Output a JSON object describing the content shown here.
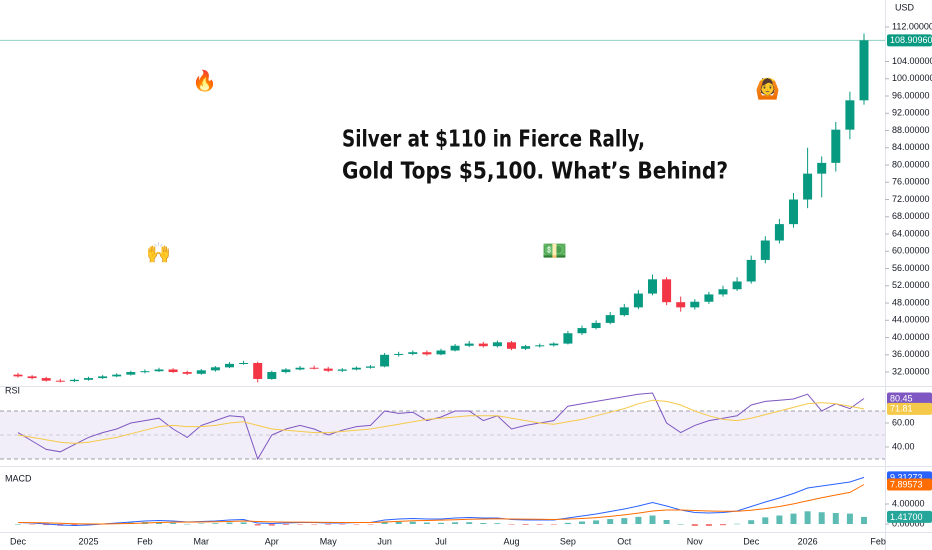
{
  "headline": [
    "Silver at $110 in Fierce Rally,",
    "Gold Tops $5,100. What’s Behind?"
  ],
  "stickers": [
    "🔥",
    "🙆",
    "🙌",
    "💵"
  ],
  "currency": "USD",
  "chart_data": [
    {
      "type": "candlestick",
      "name": "price",
      "categories": [
        "Dec",
        null,
        null,
        null,
        null,
        "2025",
        null,
        null,
        null,
        "Feb",
        null,
        null,
        null,
        "Mar",
        null,
        null,
        null,
        null,
        "Apr",
        null,
        null,
        null,
        "May",
        null,
        null,
        null,
        "Jun",
        null,
        null,
        null,
        "Jul",
        null,
        null,
        null,
        null,
        "Aug",
        null,
        null,
        null,
        "Sep",
        null,
        null,
        null,
        "Oct",
        null,
        null,
        null,
        null,
        "Nov",
        null,
        null,
        null,
        "Dec",
        null,
        null,
        null,
        "2026",
        null,
        null,
        null,
        null,
        "Feb"
      ],
      "open": [
        31.4,
        31.0,
        30.6,
        30.0,
        29.9,
        30.2,
        30.6,
        31.0,
        31.4,
        32.0,
        32.2,
        32.6,
        32.0,
        31.6,
        32.4,
        33.1,
        33.9,
        34.1,
        30.4,
        32.0,
        32.6,
        33.0,
        32.8,
        32.3,
        32.6,
        33.0,
        33.3,
        36.0,
        36.2,
        36.6,
        36.1,
        37.0,
        38.1,
        38.6,
        38.0,
        38.9,
        37.4,
        38.0,
        38.2,
        38.6,
        41.0,
        42.2,
        43.4,
        45.2,
        47.0,
        50.2,
        53.5,
        48.2,
        47.0,
        48.3,
        50.0,
        51.2,
        53.0,
        58.0,
        62.5,
        66.3,
        72.0,
        78.0,
        80.5,
        88.2,
        95.0,
        null
      ],
      "high": [
        31.8,
        31.3,
        30.9,
        30.4,
        30.5,
        30.9,
        31.3,
        31.7,
        32.3,
        32.6,
        33.0,
        32.9,
        32.3,
        32.7,
        33.4,
        34.3,
        34.6,
        34.4,
        32.3,
        32.9,
        33.4,
        33.5,
        33.2,
        32.9,
        33.3,
        33.6,
        36.4,
        36.7,
        37.0,
        37.0,
        37.4,
        38.5,
        39.2,
        39.0,
        39.3,
        39.2,
        38.3,
        38.6,
        38.9,
        41.5,
        42.8,
        44.0,
        45.9,
        47.8,
        51.0,
        54.6,
        54.0,
        49.5,
        48.9,
        50.6,
        52.0,
        54.0,
        59.0,
        63.5,
        67.5,
        73.5,
        84.0,
        82.0,
        90.0,
        97.0,
        110.5,
        null
      ],
      "low": [
        30.7,
        30.3,
        29.8,
        29.6,
        29.7,
        30.0,
        30.4,
        30.8,
        31.2,
        31.7,
        32.0,
        31.8,
        31.3,
        31.4,
        32.1,
        32.9,
        33.7,
        29.6,
        30.2,
        31.7,
        32.4,
        32.6,
        32.0,
        32.0,
        32.4,
        32.8,
        33.1,
        35.6,
        35.9,
        35.8,
        35.9,
        36.8,
        37.8,
        37.7,
        37.7,
        37.1,
        37.1,
        37.7,
        37.9,
        38.4,
        40.6,
        41.9,
        43.1,
        44.9,
        46.6,
        49.8,
        47.5,
        46.0,
        46.5,
        47.8,
        49.5,
        50.8,
        52.5,
        57.2,
        61.8,
        65.5,
        70.0,
        72.5,
        78.5,
        86.0,
        94.0,
        null
      ],
      "close": [
        31.0,
        30.6,
        30.0,
        29.9,
        30.2,
        30.6,
        31.0,
        31.4,
        32.0,
        32.2,
        32.6,
        32.0,
        31.6,
        32.4,
        33.1,
        33.9,
        34.1,
        30.4,
        32.0,
        32.6,
        33.0,
        32.8,
        32.3,
        32.6,
        33.0,
        33.3,
        36.0,
        36.2,
        36.6,
        36.1,
        37.0,
        38.1,
        38.6,
        38.0,
        38.9,
        37.4,
        38.0,
        38.2,
        38.6,
        41.0,
        42.2,
        43.4,
        45.2,
        47.0,
        50.2,
        53.5,
        48.2,
        47.0,
        48.3,
        50.0,
        51.2,
        53.0,
        58.0,
        62.5,
        66.3,
        72.0,
        78.0,
        80.5,
        88.2,
        95.0,
        108.9096,
        null
      ],
      "last_label": "108.90960",
      "up_color": "#089981",
      "down_color": "#f23645",
      "ylim": [
        29,
        118.26
      ],
      "yticks": [
        {
          "value": 32,
          "label": "32.00000"
        },
        {
          "value": 36,
          "label": "36.00000"
        },
        {
          "value": 40,
          "label": "40.00000"
        },
        {
          "value": 44,
          "label": "44.00000"
        },
        {
          "value": 48,
          "label": "48.00000"
        },
        {
          "value": 52,
          "label": "52.00000"
        },
        {
          "value": 56,
          "label": "56.00000"
        },
        {
          "value": 60,
          "label": "60.00000"
        },
        {
          "value": 64,
          "label": "64.00000"
        },
        {
          "value": 68,
          "label": "68.00000"
        },
        {
          "value": 72,
          "label": "72.00000"
        },
        {
          "value": 76,
          "label": "76.00000"
        },
        {
          "value": 80,
          "label": "80.00000"
        },
        {
          "value": 84,
          "label": "84.00000"
        },
        {
          "value": 88,
          "label": "88.00000"
        },
        {
          "value": 92,
          "label": "92.00000"
        },
        {
          "value": 96,
          "label": "96.00000"
        },
        {
          "value": 100,
          "label": "100.00000"
        },
        {
          "value": 104,
          "label": "104.00000"
        },
        {
          "value": 112,
          "label": "112.00000"
        }
      ],
      "grid": false
    },
    {
      "type": "line",
      "name": "RSI",
      "series": [
        {
          "name": "RSI",
          "color": "#7e57c2",
          "last_label": "80.45",
          "values": [
            52,
            45,
            38,
            36,
            42,
            48,
            52,
            55,
            60,
            62,
            64,
            55,
            48,
            58,
            62,
            66,
            65,
            30,
            50,
            55,
            58,
            55,
            50,
            54,
            57,
            58,
            70,
            68,
            69,
            62,
            65,
            70,
            70,
            62,
            66,
            55,
            58,
            60,
            62,
            74,
            76,
            78,
            80,
            82,
            84,
            85,
            60,
            52,
            58,
            62,
            64,
            66,
            75,
            78,
            79,
            80,
            84,
            70,
            76,
            72,
            80.45,
            null
          ]
        },
        {
          "name": "RSI-based MA",
          "color": "#f5c94a",
          "last_label": "71.81",
          "values": [
            50,
            48,
            46,
            44,
            43,
            44,
            46,
            48,
            51,
            54,
            57,
            58,
            57,
            57,
            58,
            60,
            61,
            58,
            55,
            54,
            53,
            52,
            52,
            53,
            54,
            55,
            57,
            59,
            61,
            63,
            64,
            65,
            66,
            66,
            66,
            64,
            62,
            60,
            59,
            61,
            63,
            66,
            69,
            72,
            76,
            79,
            78,
            75,
            70,
            66,
            63,
            62,
            64,
            67,
            70,
            73,
            76,
            77,
            76,
            74,
            71.81,
            null
          ]
        }
      ],
      "bands": {
        "upper": 70,
        "middle": 50,
        "lower": 30
      },
      "ylim": [
        25,
        89.2
      ],
      "yticks": [
        {
          "value": 40,
          "label": "40.00"
        },
        {
          "value": 60,
          "label": "60.00"
        }
      ]
    },
    {
      "type": "macd",
      "name": "MACD",
      "series": [
        {
          "name": "Histogram",
          "kind": "bar",
          "color": "#26a69a",
          "negative_color": "#ef5350",
          "last_label": "1.41700",
          "values": [
            0,
            -0.08,
            -0.22,
            -0.34,
            -0.35,
            -0.2,
            0,
            0.16,
            0.29,
            0.39,
            0.39,
            0.23,
            0.02,
            0.1,
            0.16,
            0.29,
            0.31,
            -0.31,
            -0.33,
            -0.18,
            -0.07,
            -0.06,
            -0.13,
            -0.11,
            -0.01,
            -0.01,
            0.39,
            0.47,
            0.46,
            0.29,
            0.23,
            0.34,
            0.35,
            0.2,
            0.16,
            -0.11,
            -0.17,
            -0.14,
            -0.11,
            0.23,
            0.5,
            0.72,
            0.98,
            1.18,
            1.43,
            1.7,
            0.8,
            0,
            -0.4,
            -0.4,
            -0.24,
            0.05,
            0.76,
            1.33,
            1.7,
            2.08,
            2.54,
            2.35,
            2.2,
            2.08,
            1.417,
            null
          ]
        },
        {
          "name": "MACD",
          "kind": "line",
          "color": "#2962ff",
          "last_label": "9.31273",
          "values": [
            0.3,
            0.2,
            0.0,
            -0.2,
            -0.3,
            -0.2,
            0.0,
            0.2,
            0.4,
            0.6,
            0.7,
            0.6,
            0.4,
            0.5,
            0.6,
            0.8,
            0.9,
            0.2,
            0.1,
            0.2,
            0.3,
            0.3,
            0.2,
            0.2,
            0.3,
            0.3,
            0.8,
            1.0,
            1.1,
            1.0,
            1.0,
            1.2,
            1.3,
            1.2,
            1.2,
            0.9,
            0.8,
            0.8,
            0.8,
            1.2,
            1.6,
            2.0,
            2.5,
            3.0,
            3.6,
            4.3,
            3.6,
            2.8,
            2.3,
            2.2,
            2.3,
            2.6,
            3.5,
            4.4,
            5.2,
            6.1,
            7.2,
            7.6,
            8.0,
            8.4,
            9.31273,
            null
          ]
        },
        {
          "name": "Signal",
          "kind": "line",
          "color": "#ff6d00",
          "last_label": "7.89573",
          "values": [
            0.3,
            0.28,
            0.22,
            0.14,
            0.05,
            0.0,
            0.0,
            0.04,
            0.11,
            0.21,
            0.31,
            0.37,
            0.38,
            0.4,
            0.44,
            0.51,
            0.59,
            0.51,
            0.43,
            0.38,
            0.37,
            0.36,
            0.33,
            0.31,
            0.31,
            0.31,
            0.41,
            0.53,
            0.64,
            0.71,
            0.77,
            0.86,
            0.95,
            1.0,
            1.04,
            1.01,
            0.97,
            0.94,
            0.91,
            0.97,
            1.1,
            1.28,
            1.52,
            1.82,
            2.17,
            2.6,
            2.8,
            2.8,
            2.7,
            2.6,
            2.54,
            2.55,
            2.74,
            3.07,
            3.5,
            4.02,
            4.66,
            5.25,
            5.8,
            6.32,
            7.89573,
            null
          ]
        }
      ],
      "ylim": [
        -1.2,
        10.8
      ],
      "yticks": [
        {
          "value": 0,
          "label": "0.00000"
        },
        {
          "value": 4,
          "label": "4.00000"
        }
      ]
    }
  ]
}
